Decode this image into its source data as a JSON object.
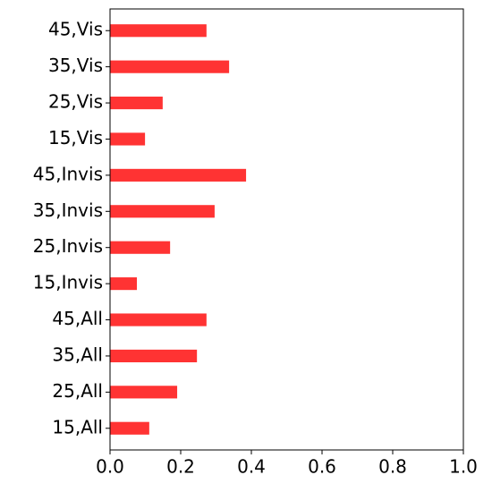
{
  "chart_data": {
    "type": "barh",
    "categories": [
      "15,All",
      "25,All",
      "35,All",
      "45,All",
      "15,Invis",
      "25,Invis",
      "35,Invis",
      "45,Invis",
      "15,Vis",
      "25,Vis",
      "35,Vis",
      "45,Vis"
    ],
    "values": [
      0.111,
      0.19,
      0.246,
      0.273,
      0.076,
      0.17,
      0.296,
      0.385,
      0.099,
      0.149,
      0.337,
      0.273
    ],
    "color": "#ff3333",
    "xlim": [
      0,
      1
    ],
    "xticks": [
      {
        "value": 0,
        "label": "0.0"
      },
      0.2,
      0.4,
      0.6,
      0.8,
      {
        "value": 1,
        "label": "1.0"
      }
    ]
  }
}
